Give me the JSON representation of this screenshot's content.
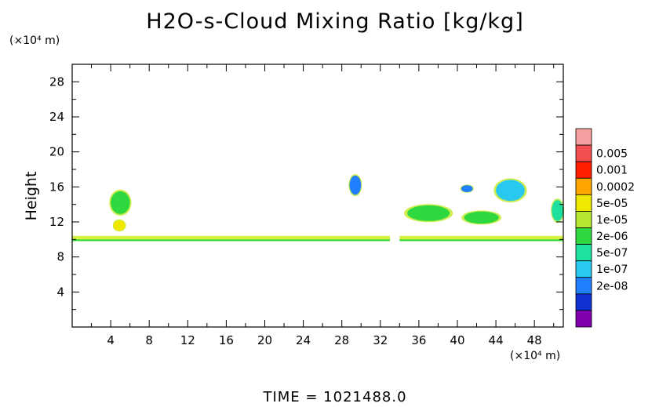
{
  "chart_data": {
    "type": "heatmap",
    "title": "H2O-s-Cloud Mixing Ratio [kg/kg]",
    "ylabel": "Height",
    "xlabel": "",
    "x_unit": "(×10⁴ m)",
    "y_unit": "(×10⁴ m)",
    "xlim": [
      0,
      51
    ],
    "ylim": [
      0,
      30
    ],
    "x_ticks": [
      4,
      8,
      12,
      16,
      20,
      24,
      28,
      32,
      36,
      40,
      44,
      48
    ],
    "y_ticks": [
      4,
      8,
      12,
      16,
      20,
      24,
      28
    ],
    "colorbar": {
      "levels": [
        "0.005",
        "0.001",
        "0.0002",
        "5e-05",
        "1e-05",
        "2e-06",
        "5e-07",
        "1e-07",
        "2e-08"
      ],
      "colors": [
        "#f4a0a0",
        "#f25050",
        "#ff1e00",
        "#ffa500",
        "#f0e800",
        "#b8e830",
        "#30d840",
        "#20e0a0",
        "#28c8f0",
        "#2080ff",
        "#1030d0",
        "#8000b0"
      ]
    },
    "features": [
      {
        "kind": "layer",
        "x": [
          0,
          33
        ],
        "y": [
          9.8,
          10.4
        ],
        "level": "1e-05"
      },
      {
        "kind": "layer",
        "x": [
          34,
          51
        ],
        "y": [
          9.8,
          10.4
        ],
        "level": "1e-05"
      },
      {
        "kind": "blob",
        "x": 5,
        "y": 14.2,
        "rx": 1.0,
        "ry": 1.3,
        "level": "1e-05"
      },
      {
        "kind": "blob",
        "x": 4.9,
        "y": 11.6,
        "rx": 0.6,
        "ry": 0.6,
        "level": "0.0002"
      },
      {
        "kind": "blob",
        "x": 29.4,
        "y": 16.2,
        "rx": 0.6,
        "ry": 1.1,
        "level": "1e-07"
      },
      {
        "kind": "blob",
        "x": 41,
        "y": 15.8,
        "rx": 0.6,
        "ry": 0.4,
        "level": "1e-07"
      },
      {
        "kind": "blob",
        "x": 45.5,
        "y": 15.6,
        "rx": 1.5,
        "ry": 1.2,
        "level": "5e-07"
      },
      {
        "kind": "blob",
        "x": 37,
        "y": 13,
        "rx": 2.2,
        "ry": 0.9,
        "level": "1e-05"
      },
      {
        "kind": "blob",
        "x": 42.5,
        "y": 12.5,
        "rx": 1.8,
        "ry": 0.7,
        "level": "1e-05"
      },
      {
        "kind": "blob",
        "x": 50.4,
        "y": 13.3,
        "rx": 0.6,
        "ry": 1.2,
        "level": "2e-06"
      }
    ]
  },
  "footer": {
    "time_label": "TIME  =  1021488.0"
  }
}
